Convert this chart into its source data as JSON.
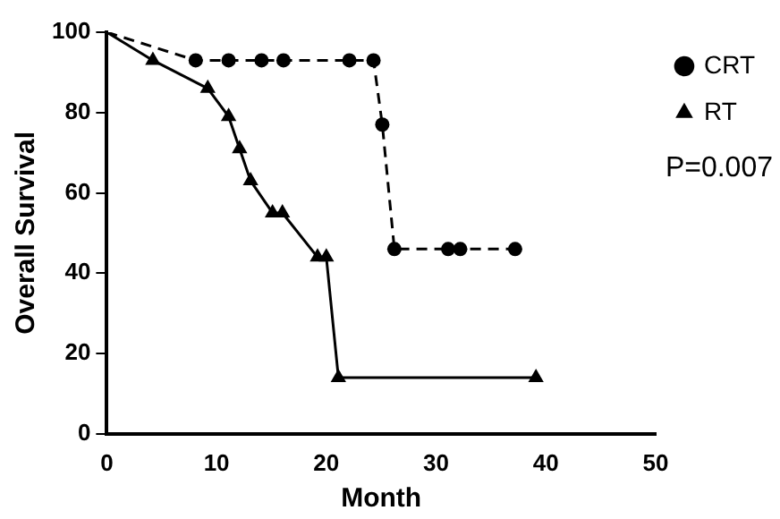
{
  "chart_data": {
    "type": "line",
    "xlabel": "Month",
    "ylabel": "Overall Survival",
    "xlim": [
      0,
      50
    ],
    "xticks": [
      0,
      10,
      20,
      30,
      40,
      50
    ],
    "ylim": [
      0,
      100
    ],
    "yticks": [
      0,
      20,
      40,
      60,
      80,
      100
    ],
    "grid": false,
    "legend": "right",
    "series": [
      {
        "name": "CRT",
        "color": "#000000",
        "marker": "circle",
        "line_style": "dashed",
        "x": [
          0,
          8.1,
          11.1,
          14.1,
          16.1,
          22.1,
          24.3,
          25.1,
          26.2,
          31.1,
          32.2,
          37.2
        ],
        "values": [
          100,
          93,
          93,
          93,
          93,
          93,
          93,
          77,
          46,
          46,
          46,
          46
        ]
      },
      {
        "name": "RT",
        "color": "#000000",
        "marker": "triangle",
        "line_style": "solid",
        "x": [
          0,
          4.2,
          9.2,
          11.1,
          12.1,
          13.1,
          15.1,
          16,
          19.2,
          20,
          21.1,
          39.1
        ],
        "values": [
          100,
          93,
          86,
          79,
          71,
          63,
          55,
          55,
          44,
          44,
          14,
          14
        ]
      }
    ],
    "annotations": [
      "P=0.007"
    ]
  }
}
